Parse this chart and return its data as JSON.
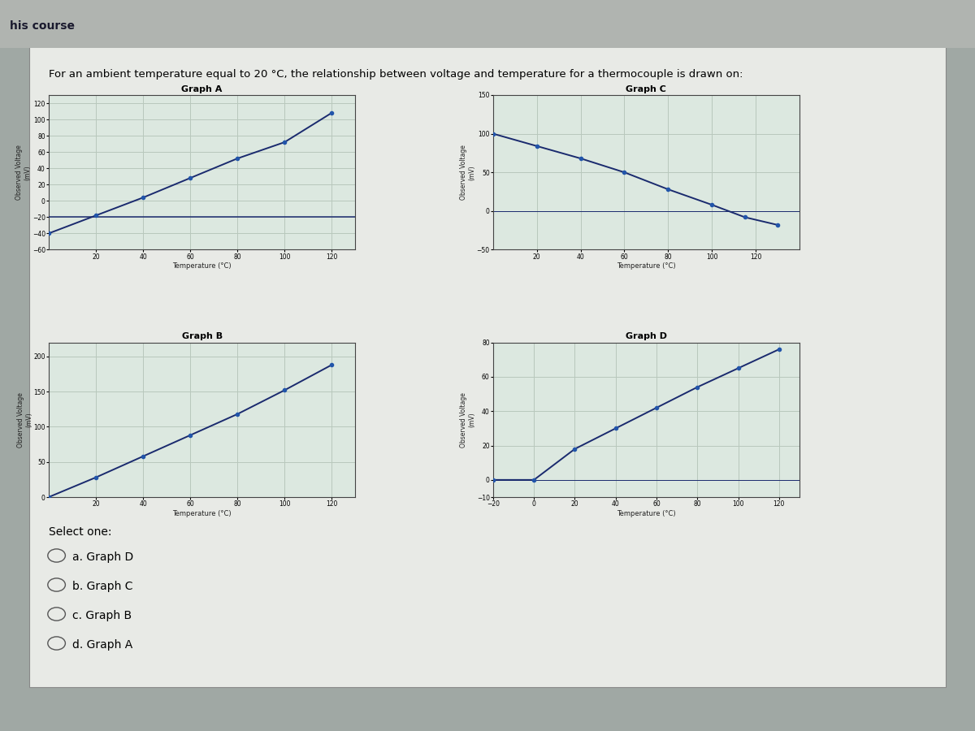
{
  "outer_bg": "#a0a8a4",
  "inner_bg": "#e8eae6",
  "graph_bg": "#dce8e0",
  "grid_color": "#b8c8bc",
  "line_color": "#1a2a6e",
  "dot_color": "#2255aa",
  "header_bg": "#c8ccc8",
  "title": "For an ambient temperature equal to 20 °C, the relationship between voltage and temperature for a thermocouple is drawn on:",
  "course_text": "his course",
  "graphA": {
    "title": "Graph A",
    "xlabel": "Temperature (°C)",
    "ylabel": "Observed Voltage\n(mV)",
    "xlim": [
      0,
      130
    ],
    "ylim": [
      -60,
      130
    ],
    "xticks": [
      20,
      40,
      60,
      80,
      100,
      120
    ],
    "yticks": [
      -60,
      -40,
      -20,
      0,
      20,
      40,
      60,
      80,
      100,
      120
    ],
    "line1_x": [
      0,
      20,
      40,
      60,
      80,
      100,
      120
    ],
    "line1_y": [
      -40,
      -18,
      4,
      28,
      52,
      72,
      108
    ],
    "line2_x": [
      0,
      130
    ],
    "line2_y": [
      -20,
      -20
    ]
  },
  "graphC": {
    "title": "Graph C",
    "xlabel": "Temperature (°C)",
    "ylabel": "Observed Voltage\n(mV)",
    "xlim": [
      0,
      140
    ],
    "ylim": [
      -50,
      150
    ],
    "xticks": [
      20,
      40,
      60,
      80,
      100,
      120
    ],
    "yticks": [
      -50,
      0,
      50,
      100,
      150
    ],
    "line1_x": [
      0,
      20,
      40,
      60,
      80,
      100,
      115,
      130
    ],
    "line1_y": [
      100,
      84,
      68,
      50,
      28,
      8,
      -8,
      -18
    ]
  },
  "graphB": {
    "title": "Graph B",
    "xlabel": "Temperature (°C)",
    "ylabel": "Observed Voltage\n(mV)",
    "xlim": [
      0,
      130
    ],
    "ylim": [
      0,
      220
    ],
    "xticks": [
      20,
      40,
      60,
      80,
      100,
      120
    ],
    "yticks": [
      0,
      50,
      100,
      150,
      200
    ],
    "line1_x": [
      0,
      20,
      40,
      60,
      80,
      100,
      120
    ],
    "line1_y": [
      0,
      28,
      58,
      88,
      118,
      152,
      188
    ]
  },
  "graphD": {
    "title": "Graph D",
    "xlabel": "Temperature (°C)",
    "ylabel": "Observed Voltage\n(mV)",
    "xlim": [
      -20,
      130
    ],
    "ylim": [
      -10,
      80
    ],
    "xticks": [
      -20,
      0,
      20,
      40,
      60,
      80,
      100,
      120
    ],
    "yticks": [
      -10,
      0,
      20,
      40,
      60,
      80
    ],
    "line1_x": [
      -20,
      0,
      20,
      40,
      60,
      80,
      100,
      120
    ],
    "line1_y": [
      0,
      0,
      18,
      30,
      42,
      54,
      65,
      76
    ]
  },
  "select_text": "Select one:",
  "options": [
    "a. Graph D",
    "b. Graph C",
    "c. Graph B",
    "d. Graph A"
  ]
}
